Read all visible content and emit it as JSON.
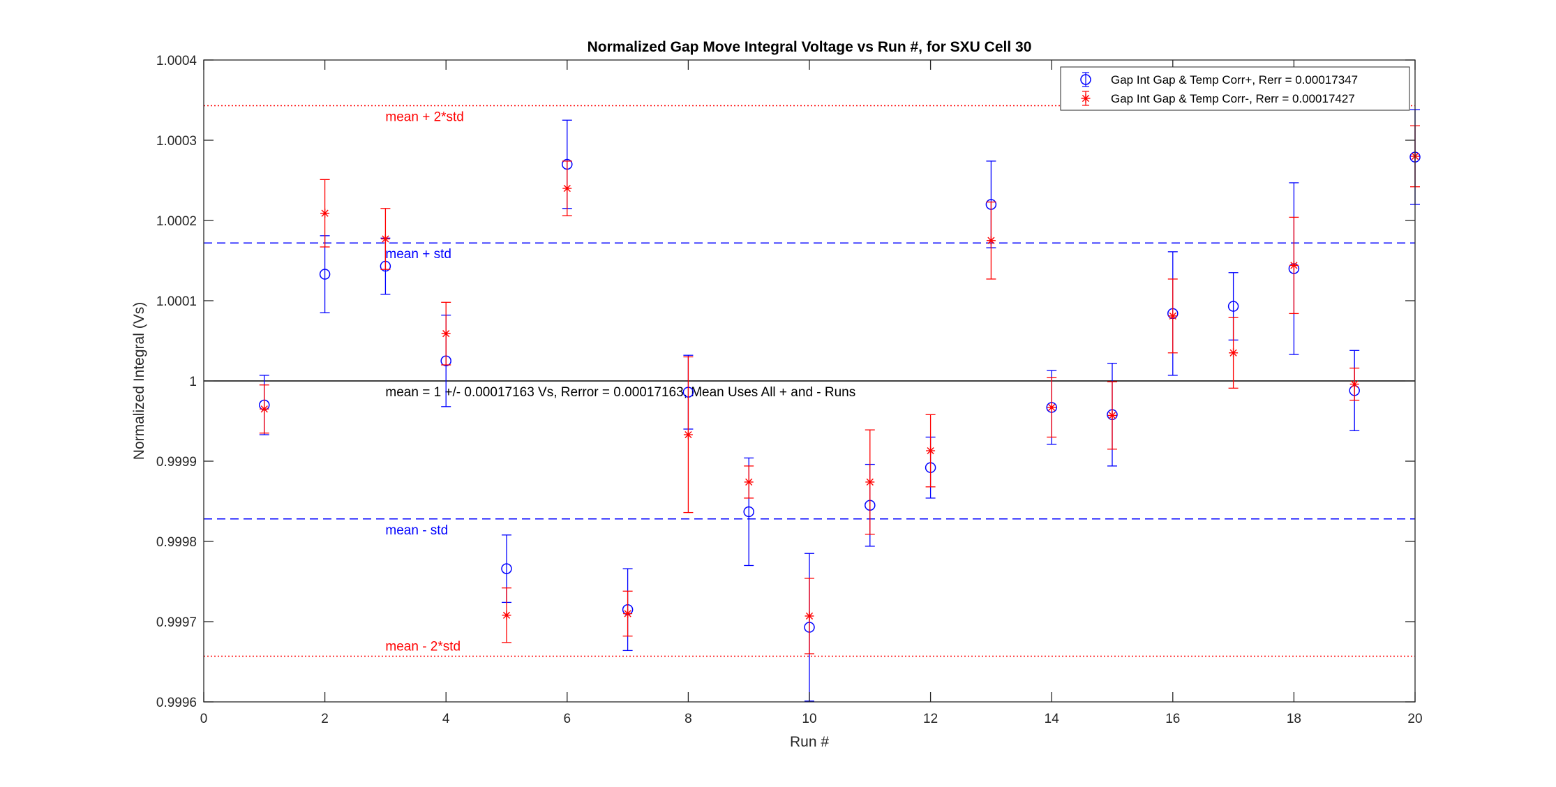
{
  "chart_data": {
    "type": "scatter",
    "title": "Normalized Gap Move Integral Voltage vs Run #, for SXU Cell 30",
    "xlabel": "Run #",
    "ylabel": "Normalized Integral (Vs)",
    "xlim": [
      0,
      20
    ],
    "ylim": [
      0.9996,
      1.0004
    ],
    "xticks": [
      0,
      2,
      4,
      6,
      8,
      10,
      12,
      14,
      16,
      18,
      20
    ],
    "xtick_labels": [
      "0",
      "2",
      "4",
      "6",
      "8",
      "10",
      "12",
      "14",
      "16",
      "18",
      "20"
    ],
    "yticks": [
      0.9996,
      0.9997,
      0.9998,
      0.9999,
      1.0,
      1.0001,
      1.0002,
      1.0003,
      1.0004
    ],
    "ytick_labels": [
      "0.9996",
      "0.9997",
      "0.9998",
      "0.9999",
      "1",
      "1.0001",
      "1.0002",
      "1.0003",
      "1.0004"
    ],
    "grid": false,
    "legend_position": "top-right",
    "series": [
      {
        "name": "Gap Int Gap & Temp Corr+, Rerr = 0.00017347",
        "marker": "circle",
        "color": "#0000ff",
        "x": [
          1,
          2,
          3,
          4,
          5,
          6,
          7,
          8,
          9,
          10,
          11,
          12,
          13,
          14,
          15,
          16,
          17,
          18,
          19,
          20
        ],
        "y": [
          0.99997,
          1.000133,
          1.000143,
          1.000025,
          0.999766,
          1.00027,
          0.999715,
          0.999986,
          0.999837,
          0.999693,
          0.999845,
          0.999892,
          1.00022,
          0.999967,
          0.999958,
          1.000084,
          1.000093,
          1.00014,
          0.999988,
          1.000279
        ],
        "err": [
          3.7e-05,
          4.8e-05,
          3.5e-05,
          5.7e-05,
          4.2e-05,
          5.5e-05,
          5.1e-05,
          4.6e-05,
          6.7e-05,
          9.2e-05,
          5.1e-05,
          3.8e-05,
          5.4e-05,
          4.6e-05,
          6.4e-05,
          7.7e-05,
          4.2e-05,
          0.000107,
          5e-05,
          5.9e-05
        ]
      },
      {
        "name": "Gap Int Gap & Temp  Corr-, Rerr = 0.00017427",
        "marker": "asterisk",
        "color": "#ff0000",
        "x": [
          1,
          2,
          3,
          4,
          5,
          6,
          7,
          8,
          9,
          10,
          11,
          12,
          13,
          14,
          15,
          16,
          17,
          18,
          19,
          20
        ],
        "y": [
          0.999965,
          1.000209,
          1.000177,
          1.000059,
          0.999708,
          1.00024,
          0.99971,
          0.999933,
          0.999874,
          0.999707,
          0.999874,
          0.999913,
          1.000175,
          0.999967,
          0.999957,
          1.000081,
          1.000035,
          1.000144,
          0.999996,
          1.00028
        ],
        "err": [
          3e-05,
          4.2e-05,
          3.8e-05,
          3.9e-05,
          3.4e-05,
          3.4e-05,
          2.8e-05,
          9.7e-05,
          2e-05,
          4.7e-05,
          6.5e-05,
          4.5e-05,
          4.8e-05,
          3.7e-05,
          4.2e-05,
          4.6e-05,
          4.4e-05,
          6e-05,
          2e-05,
          3.8e-05
        ]
      }
    ],
    "reference_lines": [
      {
        "y": 1.000343,
        "style": "dotted",
        "color": "#ff0000",
        "label": "mean + 2*std"
      },
      {
        "y": 1.000172,
        "style": "dashed",
        "color": "#0000ff",
        "label": "mean + std"
      },
      {
        "y": 1.0,
        "style": "solid",
        "color": "#000000",
        "label": "mean = 1 +/- 0.00017163 Vs, Rerror = 0.00017163, Mean Uses All + and - Runs"
      },
      {
        "y": 0.999828,
        "style": "dashed",
        "color": "#0000ff",
        "label": "mean - std"
      },
      {
        "y": 0.999657,
        "style": "dotted",
        "color": "#ff0000",
        "label": "mean - 2*std"
      }
    ]
  }
}
